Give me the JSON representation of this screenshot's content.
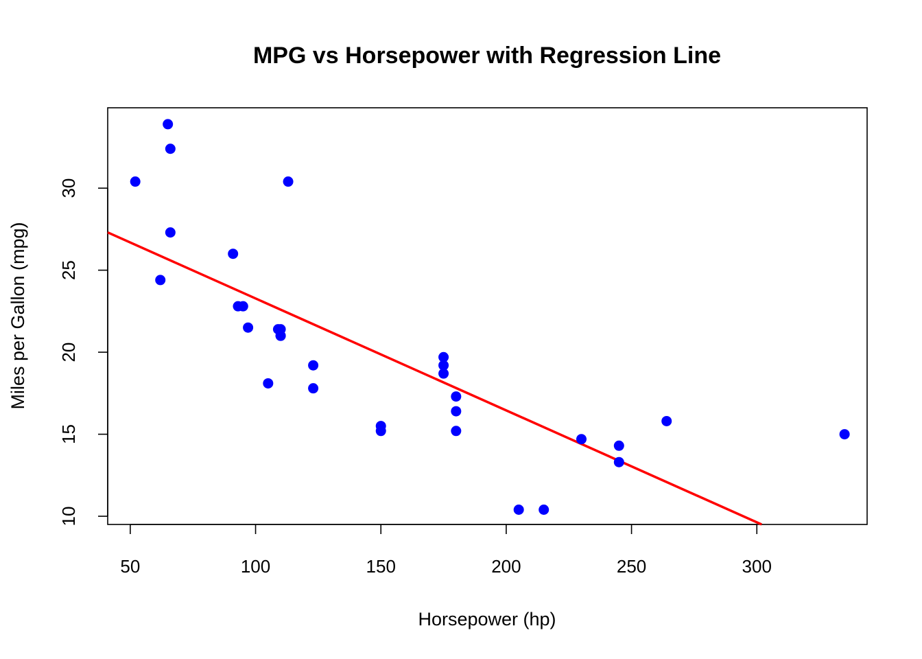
{
  "chart_data": {
    "type": "scatter",
    "title": "MPG vs Horsepower with Regression Line",
    "xlabel": "Horsepower (hp)",
    "ylabel": "Miles per Gallon (mpg)",
    "xlim": [
      41,
      344
    ],
    "ylim": [
      9.5,
      34.9
    ],
    "x_ticks": [
      50,
      100,
      150,
      200,
      250,
      300
    ],
    "y_ticks": [
      10,
      15,
      20,
      25,
      30
    ],
    "grid": false,
    "legend": "none",
    "point_color": "#0000ff",
    "line_color": "#ff0000",
    "points": [
      {
        "x": 110,
        "y": 21.0
      },
      {
        "x": 110,
        "y": 21.0
      },
      {
        "x": 93,
        "y": 22.8
      },
      {
        "x": 110,
        "y": 21.4
      },
      {
        "x": 175,
        "y": 18.7
      },
      {
        "x": 105,
        "y": 18.1
      },
      {
        "x": 245,
        "y": 14.3
      },
      {
        "x": 62,
        "y": 24.4
      },
      {
        "x": 95,
        "y": 22.8
      },
      {
        "x": 123,
        "y": 19.2
      },
      {
        "x": 123,
        "y": 17.8
      },
      {
        "x": 180,
        "y": 16.4
      },
      {
        "x": 180,
        "y": 17.3
      },
      {
        "x": 180,
        "y": 15.2
      },
      {
        "x": 205,
        "y": 10.4
      },
      {
        "x": 215,
        "y": 10.4
      },
      {
        "x": 230,
        "y": 14.7
      },
      {
        "x": 66,
        "y": 32.4
      },
      {
        "x": 52,
        "y": 30.4
      },
      {
        "x": 65,
        "y": 33.9
      },
      {
        "x": 97,
        "y": 21.5
      },
      {
        "x": 150,
        "y": 15.5
      },
      {
        "x": 150,
        "y": 15.2
      },
      {
        "x": 245,
        "y": 13.3
      },
      {
        "x": 175,
        "y": 19.2
      },
      {
        "x": 66,
        "y": 27.3
      },
      {
        "x": 91,
        "y": 26.0
      },
      {
        "x": 113,
        "y": 30.4
      },
      {
        "x": 264,
        "y": 15.8
      },
      {
        "x": 175,
        "y": 19.7
      },
      {
        "x": 335,
        "y": 15.0
      },
      {
        "x": 109,
        "y": 21.4
      }
    ],
    "regression": {
      "intercept": 30.099,
      "slope": -0.06823
    }
  }
}
